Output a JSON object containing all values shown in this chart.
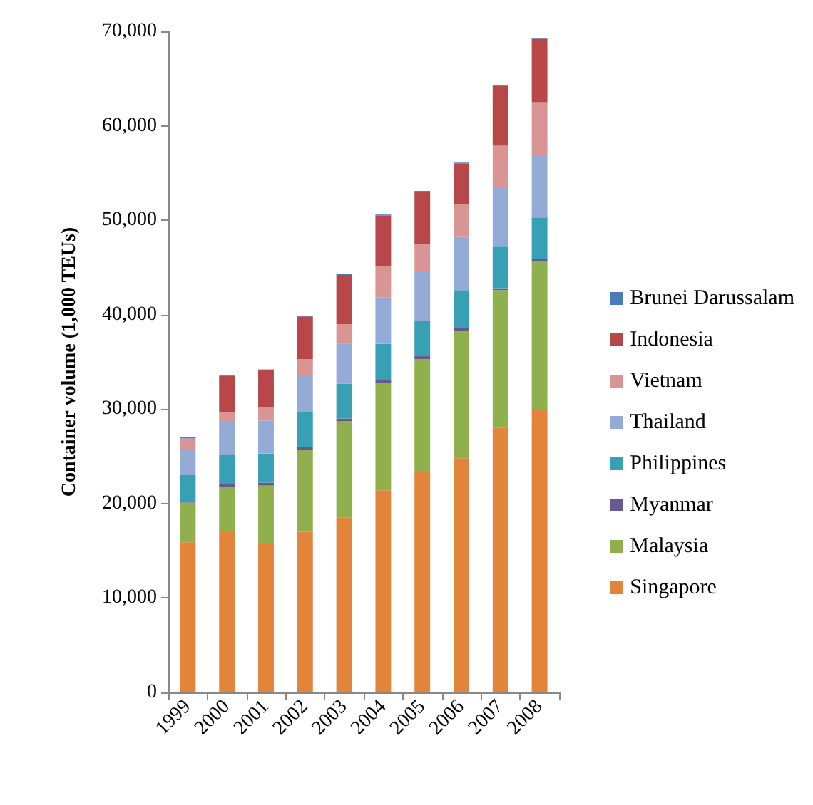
{
  "chart_data": {
    "type": "bar",
    "stacked": true,
    "ylabel": "Container volume (1,000 TEUs)",
    "categories": [
      "1999",
      "2000",
      "2001",
      "2002",
      "2003",
      "2004",
      "2005",
      "2006",
      "2007",
      "2008"
    ],
    "series": [
      {
        "name": "Singapore",
        "color": "#e2843a",
        "values": [
          15900,
          17100,
          15700,
          17000,
          18500,
          21400,
          23300,
          24800,
          28000,
          29900
        ]
      },
      {
        "name": "Malaysia",
        "color": "#8fb04c",
        "values": [
          4200,
          4700,
          6200,
          8700,
          10200,
          11400,
          12000,
          13500,
          14600,
          15800
        ]
      },
      {
        "name": "Myanmar",
        "color": "#69578f",
        "values": [
          100,
          300,
          300,
          300,
          300,
          300,
          300,
          300,
          200,
          200
        ]
      },
      {
        "name": "Philippines",
        "color": "#37a0b5",
        "values": [
          2800,
          3100,
          3100,
          3700,
          3700,
          3800,
          3700,
          4000,
          4400,
          4400
        ]
      },
      {
        "name": "Thailand",
        "color": "#94abd6",
        "values": [
          2700,
          3400,
          3500,
          3900,
          4200,
          4900,
          5300,
          5700,
          6200,
          6500
        ]
      },
      {
        "name": "Vietnam",
        "color": "#d89594",
        "values": [
          1200,
          1100,
          1400,
          1700,
          2100,
          3300,
          2900,
          3400,
          4500,
          5700
        ]
      },
      {
        "name": "Indonesia",
        "color": "#b8474a",
        "values": [
          null,
          3800,
          3900,
          4500,
          5200,
          5400,
          5500,
          4300,
          6300,
          6700
        ]
      },
      {
        "name": "Brunei Darussalam",
        "color": "#4a7cb9",
        "values": [
          100,
          100,
          100,
          100,
          100,
          100,
          100,
          100,
          100,
          100
        ]
      }
    ],
    "ylim": [
      0,
      70000
    ],
    "yticks": [
      0,
      {
        "value": 10000,
        "label": "10,000"
      },
      {
        "value": 20000,
        "label": "20,000"
      },
      {
        "value": 30000,
        "label": "30,000"
      },
      {
        "value": 40000,
        "label": "40,000"
      },
      {
        "value": 50000,
        "label": "50,000"
      },
      {
        "value": 60000,
        "label": "60,000"
      },
      {
        "value": 70000,
        "label": "70,000"
      }
    ],
    "grid": false,
    "legend": "right"
  }
}
